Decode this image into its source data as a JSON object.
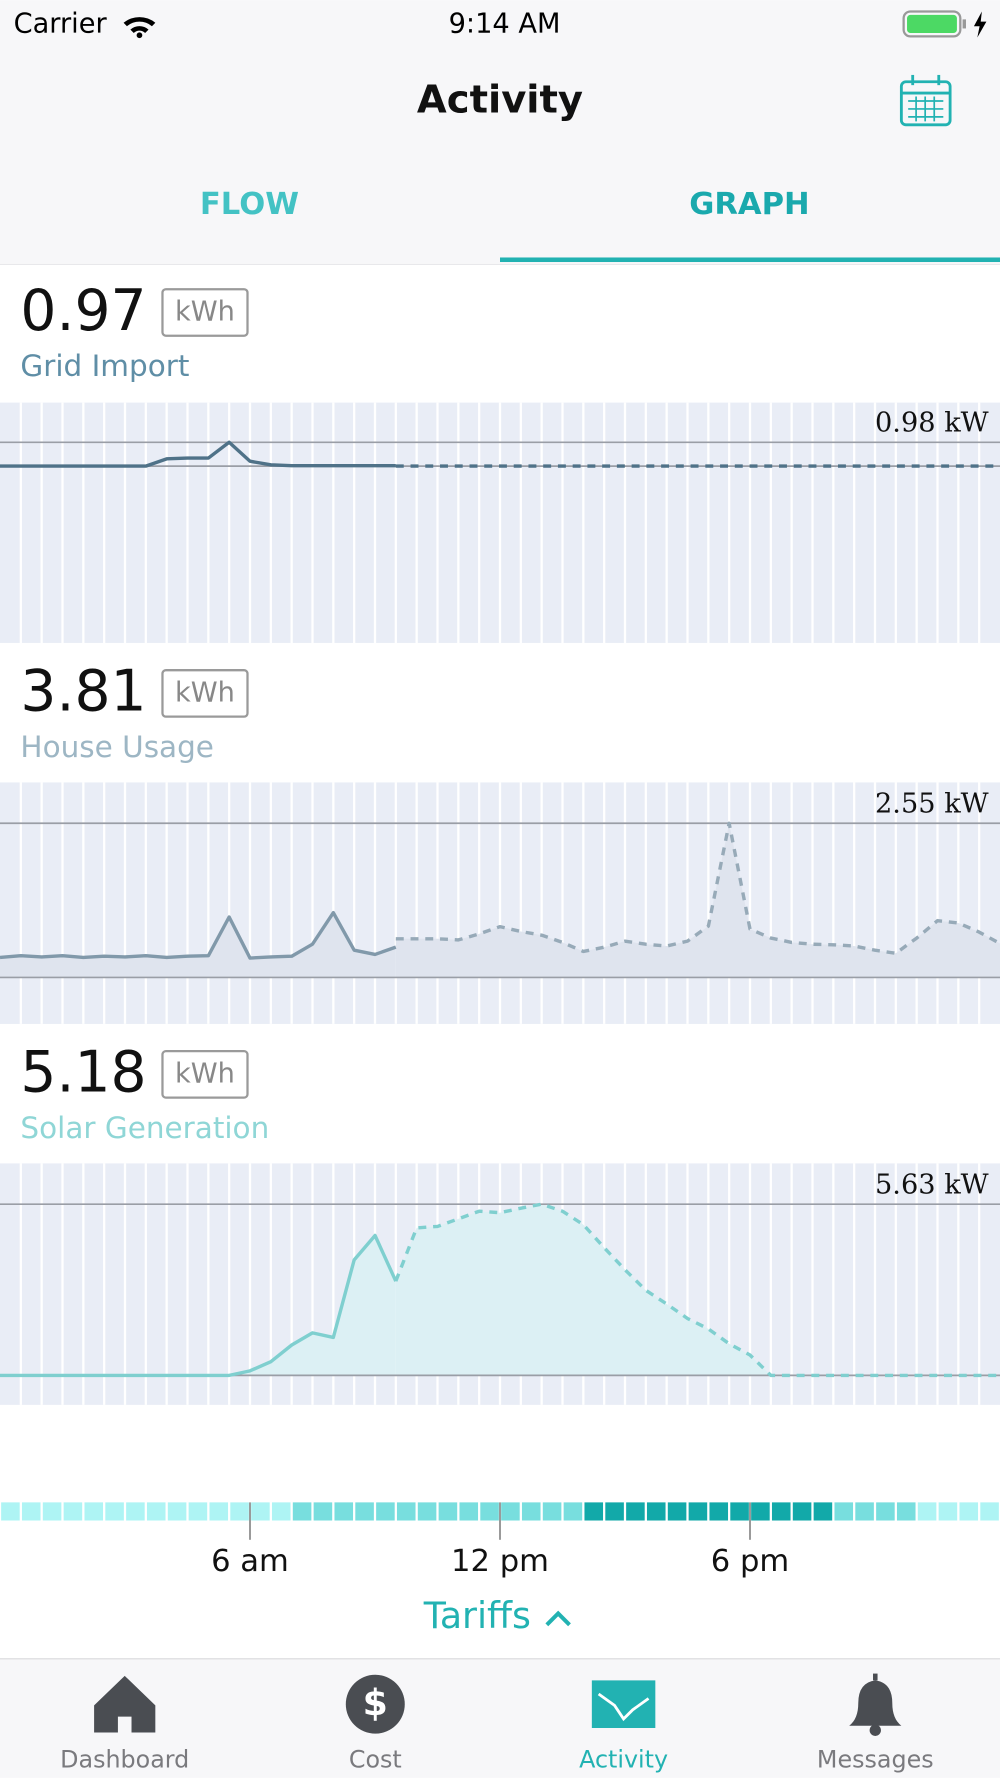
{
  "status_bar": {
    "carrier": "Carrier",
    "time": "9:14 AM"
  },
  "header": {
    "title": "Activity"
  },
  "tabs": {
    "items": [
      "FLOW",
      "GRAPH"
    ],
    "active": 1
  },
  "panels": [
    {
      "total": 0.97,
      "unit": "kWh",
      "label": "Grid Import",
      "color": "#5f8ea6"
    },
    {
      "total": 3.81,
      "unit": "kWh",
      "label": "House Usage",
      "color": "#9db6c4"
    },
    {
      "total": 5.18,
      "unit": "kWh",
      "label": "Solar Generation",
      "color": "#8fd6d6"
    }
  ],
  "chart_data": [
    {
      "type": "line",
      "xlim": [
        0,
        24
      ],
      "ylim": [
        0,
        0.98
      ],
      "yticks": [
        {
          "value": 0.98,
          "label": "0.98 kW"
        }
      ],
      "fill": false,
      "x": [
        0,
        0.5,
        1,
        1.5,
        2,
        2.5,
        3,
        3.5,
        4,
        4.5,
        5,
        5.5,
        6,
        6.5,
        7,
        7.5,
        8,
        8.5,
        9,
        9.5,
        10,
        10.5,
        11,
        11.5,
        12,
        12.5,
        13,
        13.5,
        14,
        14.5,
        15,
        15.5,
        16,
        16.5,
        17,
        17.5,
        18,
        18.5,
        19,
        19.5,
        20,
        20.5,
        21,
        21.5,
        22,
        22.5,
        23,
        23.5,
        24
      ],
      "series": [
        {
          "color": "#4f7288",
          "values": [
            0,
            0,
            0,
            0,
            0,
            0,
            0,
            0,
            0.3,
            0.33,
            0.33,
            0.98,
            0.2,
            0.05,
            0.02,
            0.02,
            0.02,
            0.02,
            0.02,
            0.02,
            null,
            null,
            null,
            null,
            null,
            null,
            null,
            null,
            null,
            null,
            null,
            null,
            null,
            null,
            null,
            null,
            null,
            null,
            null,
            null,
            null,
            null,
            null,
            null,
            null,
            null,
            null,
            null,
            null
          ]
        },
        {
          "color": "#4f7288",
          "dashed": true,
          "values": [
            null,
            null,
            null,
            null,
            null,
            null,
            null,
            null,
            null,
            null,
            null,
            null,
            null,
            null,
            null,
            null,
            null,
            null,
            null,
            0,
            0,
            0,
            0,
            0,
            0,
            0,
            0,
            0,
            0,
            0,
            0,
            0,
            0,
            0,
            0,
            0,
            0,
            0,
            0,
            0,
            0,
            0,
            0,
            0,
            0,
            0,
            0,
            0,
            0
          ]
        }
      ]
    },
    {
      "type": "line",
      "xlim": [
        0,
        24
      ],
      "ylim": [
        0,
        2.55
      ],
      "yticks": [
        {
          "value": 2.55,
          "label": "2.55 kW"
        }
      ],
      "fill": true,
      "fill_color": "#dfe4ee",
      "x": [
        0,
        0.5,
        1,
        1.5,
        2,
        2.5,
        3,
        3.5,
        4,
        4.5,
        5,
        5.5,
        6,
        6.5,
        7,
        7.5,
        8,
        8.5,
        9,
        9.5,
        10,
        10.5,
        11,
        11.5,
        12,
        12.5,
        13,
        13.5,
        14,
        14.5,
        15,
        15.5,
        16,
        16.5,
        17,
        17.5,
        18,
        18.5,
        19,
        19.5,
        20,
        20.5,
        21,
        21.5,
        22,
        22.5,
        23,
        23.5,
        24
      ],
      "series": [
        {
          "color": "#8199aa",
          "values": [
            0.33,
            0.36,
            0.34,
            0.36,
            0.33,
            0.35,
            0.34,
            0.36,
            0.33,
            0.35,
            0.36,
            1.0,
            0.32,
            0.34,
            0.35,
            0.55,
            1.07,
            0.45,
            0.38,
            0.5,
            null,
            null,
            null,
            null,
            null,
            null,
            null,
            null,
            null,
            null,
            null,
            null,
            null,
            null,
            null,
            null,
            null,
            null,
            null,
            null,
            null,
            null,
            null,
            null,
            null,
            null,
            null,
            null,
            null
          ]
        },
        {
          "color": "#97aab8",
          "dashed": true,
          "values": [
            null,
            null,
            null,
            null,
            null,
            null,
            null,
            null,
            null,
            null,
            null,
            null,
            null,
            null,
            null,
            null,
            null,
            null,
            null,
            0.64,
            0.64,
            0.64,
            0.62,
            0.72,
            0.84,
            0.76,
            0.7,
            0.58,
            0.43,
            0.5,
            0.6,
            0.55,
            0.52,
            0.6,
            0.85,
            2.55,
            0.8,
            0.65,
            0.58,
            0.55,
            0.54,
            0.52,
            0.45,
            0.4,
            0.65,
            0.94,
            0.9,
            0.75,
            0.56
          ]
        }
      ]
    },
    {
      "type": "line",
      "xlim": [
        0,
        24
      ],
      "ylim": [
        0,
        5.63
      ],
      "yticks": [
        {
          "value": 5.63,
          "label": "5.63 kW"
        }
      ],
      "fill": true,
      "fill_color": "#dcf0f4",
      "x": [
        0,
        0.5,
        1,
        1.5,
        2,
        2.5,
        3,
        3.5,
        4,
        4.5,
        5,
        5.5,
        6,
        6.5,
        7,
        7.5,
        8,
        8.5,
        9,
        9.5,
        10,
        10.5,
        11,
        11.5,
        12,
        12.5,
        13,
        13.5,
        14,
        14.5,
        15,
        15.5,
        16,
        16.5,
        17,
        17.5,
        18,
        18.5,
        19,
        19.5,
        20,
        20.5,
        21,
        21.5,
        22,
        22.5,
        23,
        23.5,
        24
      ],
      "series": [
        {
          "color": "#7fcfcf",
          "values": [
            0,
            0,
            0,
            0,
            0,
            0,
            0,
            0,
            0,
            0,
            0,
            0,
            0.15,
            0.45,
            1.0,
            1.4,
            1.25,
            3.8,
            4.6,
            3.1,
            null,
            null,
            null,
            null,
            null,
            null,
            null,
            null,
            null,
            null,
            null,
            null,
            null,
            null,
            null,
            null,
            null,
            null,
            null,
            null,
            null,
            null,
            null,
            null,
            null,
            null,
            null,
            null,
            null
          ]
        },
        {
          "color": "#7fcfcf",
          "dashed": true,
          "values": [
            null,
            null,
            null,
            null,
            null,
            null,
            null,
            null,
            null,
            null,
            null,
            null,
            null,
            null,
            null,
            null,
            null,
            null,
            null,
            3.1,
            4.85,
            4.9,
            5.15,
            5.4,
            5.35,
            5.5,
            5.63,
            5.4,
            4.96,
            4.2,
            3.47,
            2.8,
            2.35,
            1.87,
            1.53,
            1.04,
            0.67,
            0,
            0,
            0,
            0,
            0,
            0,
            0,
            0,
            0,
            0,
            0,
            0
          ]
        }
      ]
    }
  ],
  "time_axis": {
    "xlim": [
      0,
      24
    ],
    "ticks": [
      {
        "value": 6,
        "label": "6 am"
      },
      {
        "value": 12,
        "label": "12 pm"
      },
      {
        "value": 18,
        "label": "6 pm"
      }
    ]
  },
  "tariffs": {
    "label": "Tariffs"
  },
  "tab_bar": {
    "items": [
      "Dashboard",
      "Cost",
      "Activity",
      "Messages"
    ],
    "active": 2
  }
}
